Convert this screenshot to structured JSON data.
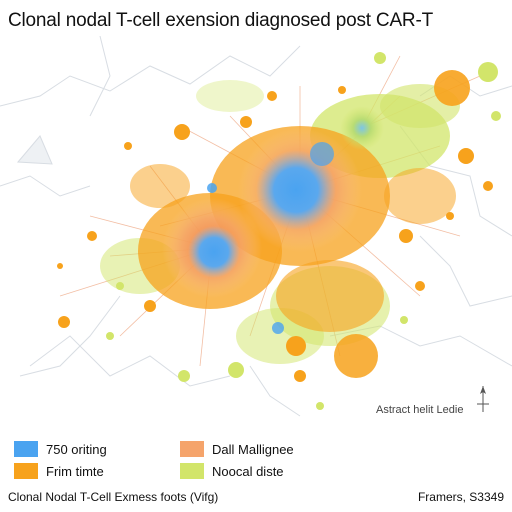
{
  "title": "Clonal nodal T-cell exension diagnosed post CAR-T",
  "annotation": "Astract helit Ledie",
  "legend": [
    {
      "label": "750 oriting",
      "color": "#4aa3f0"
    },
    {
      "label": "Dall Mallignee",
      "color": "#f5a46b"
    },
    {
      "label": "Frim timte",
      "color": "#f7a21c"
    },
    {
      "label": "Noocal diste",
      "color": "#d2e56a"
    }
  ],
  "footer": {
    "left": "Clonal Nodal T-Cell Exmess foots (Vifg)",
    "right": "Framers, S3349"
  },
  "icons": {
    "compass": "north-arrow-icon"
  },
  "colors": {
    "blue_core": "#4aa3f0",
    "orange": "#f7a21c",
    "salmon": "#f5a46b",
    "yellow_green": "#d2e56a",
    "outline": "#d8dde3"
  }
}
